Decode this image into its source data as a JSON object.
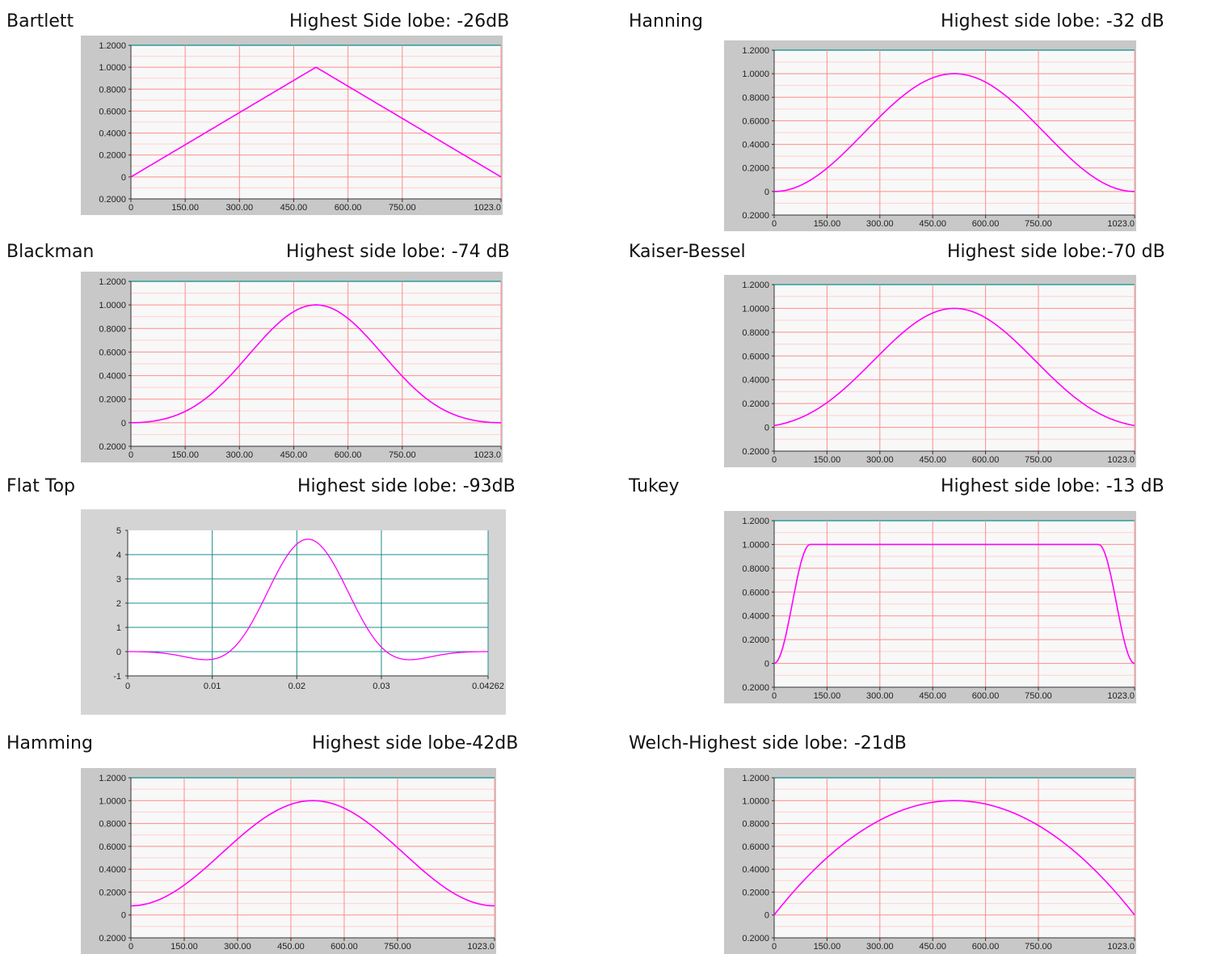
{
  "charts": [
    {
      "id": "bartlett",
      "name": "Bartlett",
      "lobe": "Highest Side lobe: -26dB",
      "ylabels": [
        "1.2000",
        "1.0000",
        "0.8000",
        "0.6000",
        "0.4000",
        "0.2000",
        "0",
        "0.2000"
      ],
      "xlabels": [
        "0",
        "150.00",
        "300.00",
        "450.00",
        "600.00",
        "750.00",
        "1023.0"
      ]
    },
    {
      "id": "hanning",
      "name": "Hanning",
      "lobe": "Highest side lobe: -32 dB",
      "ylabels": [
        "1.2000",
        "1.0000",
        "0.8000",
        "0.6000",
        "0.4000",
        "0.2000",
        "0",
        "0.2000"
      ],
      "xlabels": [
        "0",
        "150.00",
        "300.00",
        "450.00",
        "600.00",
        "750.00",
        "1023.0"
      ]
    },
    {
      "id": "blackman",
      "name": "Blackman",
      "lobe": "Highest side lobe: -74 dB",
      "ylabels": [
        "1.2000",
        "1.0000",
        "0.8000",
        "0.6000",
        "0.4000",
        "0.2000",
        "0",
        "0.2000"
      ],
      "xlabels": [
        "0",
        "150.00",
        "300.00",
        "450.00",
        "600.00",
        "750.00",
        "1023.0"
      ]
    },
    {
      "id": "kaiser",
      "name": "Kaiser-Bessel",
      "lobe": "Highest side lobe:-70 dB",
      "ylabels": [
        "1.2000",
        "1.0000",
        "0.8000",
        "0.6000",
        "0.4000",
        "0.2000",
        "0",
        "0.2000"
      ],
      "xlabels": [
        "0",
        "150.00",
        "300.00",
        "450.00",
        "600.00",
        "750.00",
        "1023.0"
      ]
    },
    {
      "id": "flattop",
      "name": "Flat Top",
      "lobe": "Highest side lobe: -93dB",
      "ylabels": [
        "5",
        "4",
        "3",
        "2",
        "1",
        "0",
        "-1"
      ],
      "xlabels": [
        "0",
        "0.01",
        "0.02",
        "0.03",
        "0.04262"
      ]
    },
    {
      "id": "tukey",
      "name": "Tukey",
      "lobe": "Highest side lobe: -13 dB",
      "ylabels": [
        "1.2000",
        "1.0000",
        "0.8000",
        "0.6000",
        "0.4000",
        "0.2000",
        "0",
        "0.2000"
      ],
      "xlabels": [
        "0",
        "150.00",
        "300.00",
        "450.00",
        "600.00",
        "750.00",
        "1023.0"
      ]
    },
    {
      "id": "hamming",
      "name": "Hamming",
      "lobe": "Highest side lobe-42dB",
      "ylabels": [
        "1.2000",
        "1.0000",
        "0.8000",
        "0.6000",
        "0.4000",
        "0.2000",
        "0",
        "0.2000"
      ],
      "xlabels": [
        "0",
        "150.00",
        "300.00",
        "450.00",
        "600.00",
        "750.00",
        "1023.0"
      ]
    },
    {
      "id": "welch",
      "name": "Welch-Highest side lobe: -21dB",
      "lobe": "",
      "ylabels": [
        "1.2000",
        "1.0000",
        "0.8000",
        "0.6000",
        "0.4000",
        "0.2000",
        "0",
        "0.2000"
      ],
      "xlabels": [
        "0",
        "150.00",
        "300.00",
        "450.00",
        "600.00",
        "750.00",
        "1023.0"
      ]
    }
  ],
  "chart_data": [
    {
      "type": "line",
      "title": "Bartlett",
      "x_range": [
        0,
        1023
      ],
      "ylim": [
        -0.2,
        1.2
      ],
      "x_ticks": [
        0,
        150,
        300,
        450,
        600,
        750,
        1023
      ],
      "grid": true,
      "series": [
        {
          "window": "bartlett",
          "x": [
            0,
            511.5,
            1023
          ],
          "y": [
            0,
            1,
            0
          ]
        }
      ],
      "line_color": "#ff00ff"
    },
    {
      "type": "line",
      "title": "Hanning",
      "x_range": [
        0,
        1023
      ],
      "ylim": [
        -0.2,
        1.2
      ],
      "x_ticks": [
        0,
        150,
        300,
        450,
        600,
        750,
        1023
      ],
      "grid": true,
      "series": [
        {
          "window": "hanning"
        }
      ],
      "line_color": "#ff00ff"
    },
    {
      "type": "line",
      "title": "Blackman",
      "x_range": [
        0,
        1023
      ],
      "ylim": [
        -0.2,
        1.2
      ],
      "x_ticks": [
        0,
        150,
        300,
        450,
        600,
        750,
        1023
      ],
      "grid": true,
      "series": [
        {
          "window": "blackman"
        }
      ],
      "line_color": "#ff00ff"
    },
    {
      "type": "line",
      "title": "Kaiser-Bessel",
      "x_range": [
        0,
        1023
      ],
      "ylim": [
        -0.2,
        1.2
      ],
      "x_ticks": [
        0,
        150,
        300,
        450,
        600,
        750,
        1023
      ],
      "grid": true,
      "series": [
        {
          "window": "kaiser"
        }
      ],
      "line_color": "#ff00ff"
    },
    {
      "type": "line",
      "title": "Flat Top",
      "x_range": [
        0,
        0.04262
      ],
      "ylim": [
        -1,
        5
      ],
      "x_ticks": [
        0,
        0.01,
        0.02,
        0.03,
        0.04262
      ],
      "grid": true,
      "series": [
        {
          "window": "flattop",
          "x": [
            0,
            0.01,
            0.0213,
            0.033,
            0.04262
          ],
          "y": [
            0,
            -0.35,
            4.6,
            -0.35,
            0
          ]
        }
      ],
      "line_color": "#ff00ff"
    },
    {
      "type": "line",
      "title": "Tukey",
      "x_range": [
        0,
        1023
      ],
      "ylim": [
        -0.2,
        1.2
      ],
      "x_ticks": [
        0,
        150,
        300,
        450,
        600,
        750,
        1023
      ],
      "grid": true,
      "series": [
        {
          "window": "tukey",
          "x": [
            0,
            100,
            923,
            1023
          ],
          "y": [
            0,
            1,
            1,
            0
          ]
        }
      ],
      "line_color": "#ff00ff"
    },
    {
      "type": "line",
      "title": "Hamming",
      "x_range": [
        0,
        1023
      ],
      "ylim": [
        -0.2,
        1.2
      ],
      "x_ticks": [
        0,
        150,
        300,
        450,
        600,
        750,
        1023
      ],
      "grid": true,
      "series": [
        {
          "window": "hamming",
          "x": [
            0,
            511.5,
            1023
          ],
          "y": [
            0.08,
            1,
            0.08
          ]
        }
      ],
      "line_color": "#ff00ff"
    },
    {
      "type": "line",
      "title": "Welch-Highest side lobe: -21dB",
      "x_range": [
        0,
        1023
      ],
      "ylim": [
        -0.2,
        1.2
      ],
      "x_ticks": [
        0,
        150,
        300,
        450,
        600,
        750,
        1023
      ],
      "grid": true,
      "series": [
        {
          "window": "welch",
          "x": [
            0,
            511.5,
            1023
          ],
          "y": [
            0,
            1,
            0
          ]
        }
      ],
      "line_color": "#ff00ff"
    }
  ],
  "colors": {
    "grid_major": "#ff8c8c",
    "grid_minor": "#ffd0d0",
    "curve": "#ff00ff",
    "top_line": "#2a9d9d",
    "plot_bg": "#f8f8f8",
    "frame_bg": "#c8c8c8",
    "flattop_grid": "#1e8c8c"
  }
}
